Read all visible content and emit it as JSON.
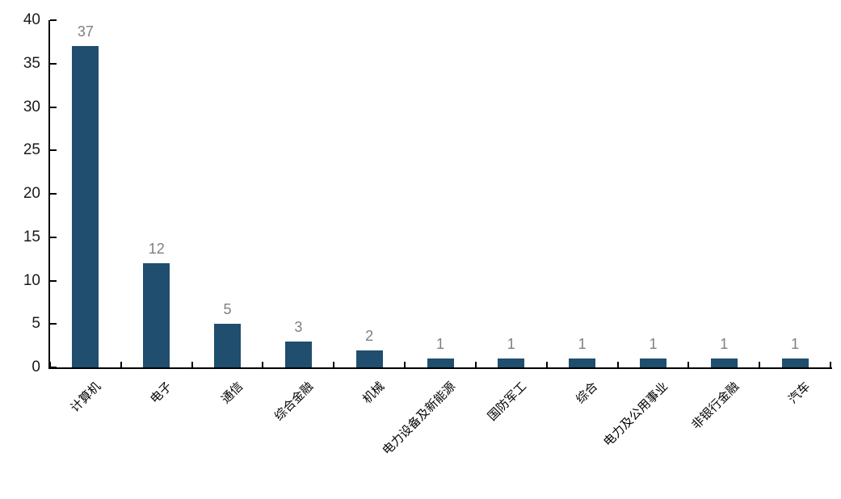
{
  "chart_data": {
    "type": "bar",
    "title": "",
    "xlabel": "",
    "ylabel": "",
    "categories": [
      "计算机",
      "电子",
      "通信",
      "综合金融",
      "机械",
      "电力设备及新能源",
      "国防军工",
      "综合",
      "电力及公用事业",
      "非银行金融",
      "汽车"
    ],
    "values": [
      37,
      12,
      5,
      3,
      2,
      1,
      1,
      1,
      1,
      1,
      1
    ],
    "ylim": [
      0,
      40
    ],
    "yticks": [
      0,
      5,
      10,
      15,
      20,
      25,
      30,
      35,
      40
    ],
    "grid": false,
    "legend": false,
    "data_labels": true,
    "x_label_rotation": -45,
    "colors": {
      "bar": "#1F4E6E",
      "value_label": "#7F7F7F",
      "axis": "#000000",
      "tick_label": "#1A1A1A",
      "background": "#FFFFFF"
    }
  }
}
